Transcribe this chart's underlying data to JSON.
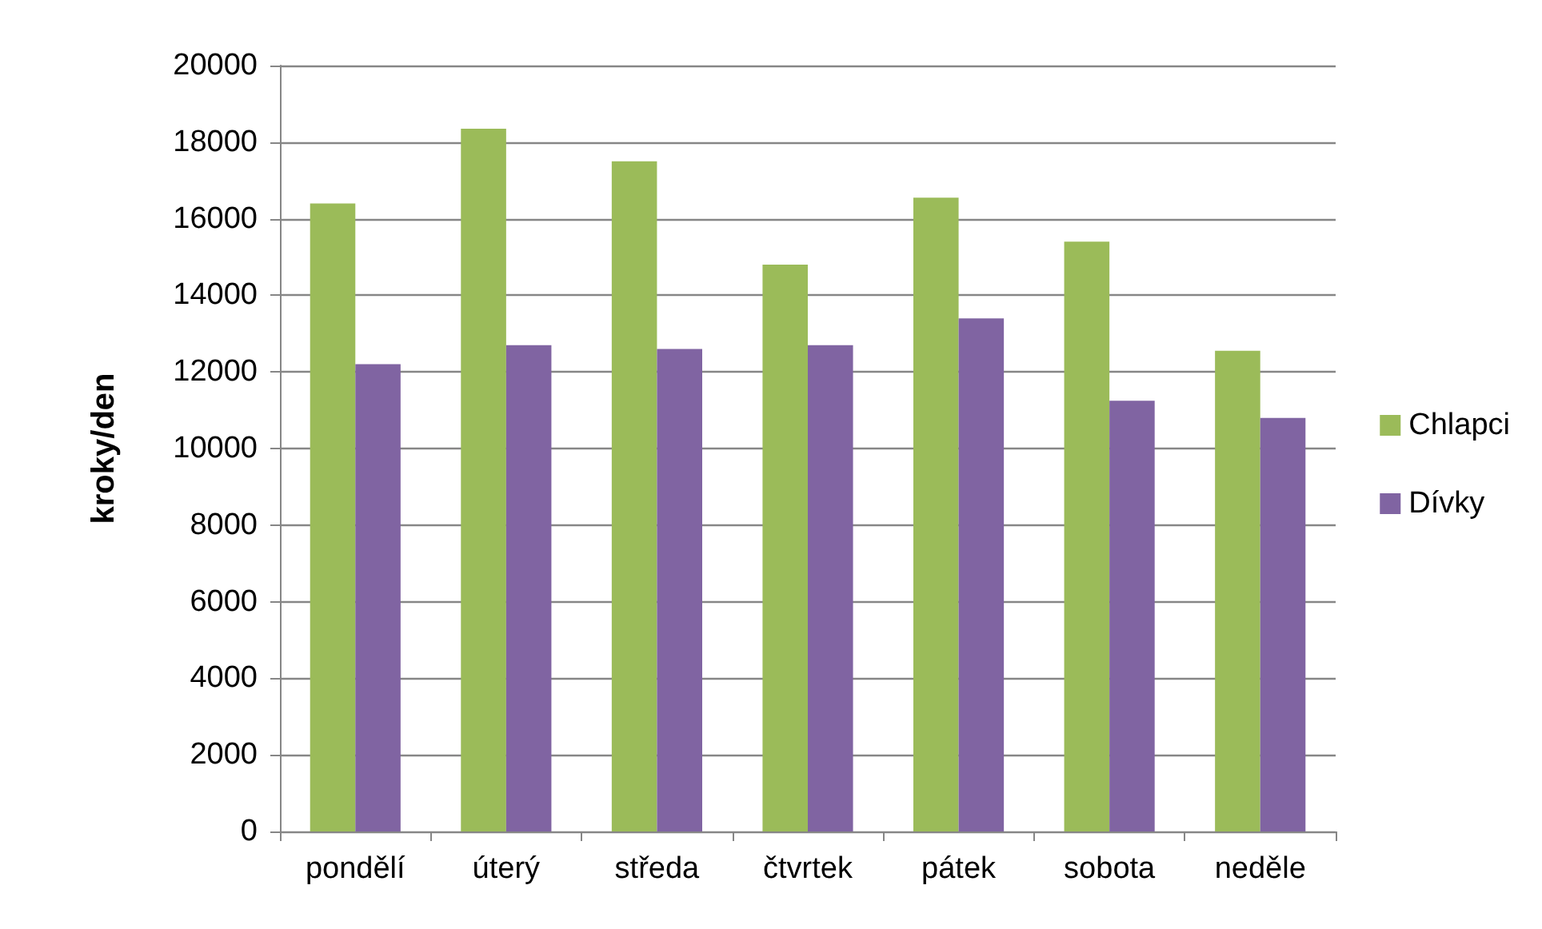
{
  "chart_data": {
    "type": "bar",
    "ylabel": "kroky/den",
    "categories": [
      "pondělí",
      "úterý",
      "středa",
      "čtvrtek",
      "pátek",
      "sobota",
      "neděle"
    ],
    "series": [
      {
        "name": "Chlapci",
        "color": "#9bbb59",
        "values": [
          16400,
          18350,
          17500,
          14800,
          16550,
          15400,
          12550
        ]
      },
      {
        "name": "Dívky",
        "color": "#8064a2",
        "values": [
          12200,
          12700,
          12600,
          12700,
          13400,
          11250,
          10800
        ]
      }
    ],
    "ylim": [
      0,
      20000
    ],
    "yticks": [
      0,
      2000,
      4000,
      6000,
      8000,
      10000,
      12000,
      14000,
      16000,
      18000,
      20000
    ],
    "grid": "y",
    "legend": "right"
  }
}
